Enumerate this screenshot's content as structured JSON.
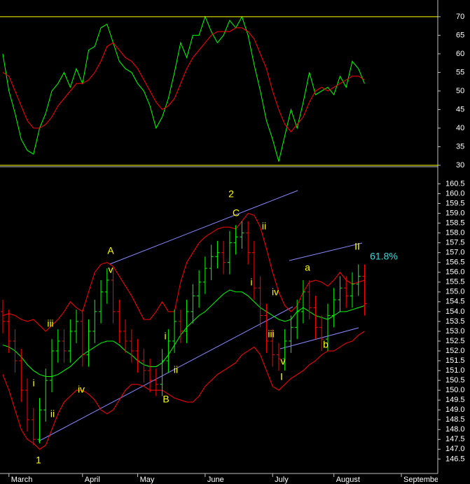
{
  "chart_data": [
    {
      "type": "line",
      "series": [
        {
          "color": "#00ff00",
          "values": [
            60,
            50,
            44,
            37,
            34,
            33,
            40,
            44,
            50,
            52,
            55,
            51,
            56,
            52,
            61,
            62,
            67,
            68,
            63,
            58,
            56,
            55,
            52,
            50,
            46,
            40,
            43,
            48,
            55,
            63,
            59,
            65,
            65,
            70,
            66,
            63,
            65,
            69,
            67,
            70,
            65,
            57,
            50,
            42,
            37,
            31,
            38,
            45,
            40,
            47,
            55,
            49,
            50,
            51,
            49,
            54,
            51,
            58,
            56,
            52
          ]
        },
        {
          "color": "#ff0000",
          "values": [
            55,
            54,
            50,
            46,
            42,
            40,
            40,
            41,
            43,
            46,
            48,
            50,
            52,
            52,
            53,
            55,
            58,
            62,
            63,
            61,
            59,
            58,
            56,
            53,
            50,
            47,
            45,
            46,
            48,
            52,
            56,
            59,
            61,
            63,
            65,
            66,
            66,
            66,
            67,
            67,
            66,
            64,
            60,
            56,
            50,
            45,
            41,
            39,
            41,
            43,
            47,
            50,
            51,
            50,
            51,
            52,
            53,
            54,
            54,
            53
          ]
        }
      ],
      "ylim": [
        29.8,
        74.5
      ],
      "yticks": [
        30,
        35,
        40,
        45,
        50,
        55,
        60,
        65,
        70
      ],
      "hlines": [
        30,
        70
      ],
      "hline_color": "#ffff00"
    },
    {
      "type": "ohlc",
      "categories": [
        null,
        "March",
        null,
        null,
        null,
        null,
        null,
        null,
        null,
        null,
        null,
        null,
        null,
        "April",
        null,
        null,
        null,
        null,
        null,
        null,
        null,
        null,
        "May",
        null,
        null,
        null,
        null,
        null,
        null,
        null,
        null,
        null,
        null,
        "June",
        null,
        null,
        null,
        null,
        null,
        null,
        null,
        null,
        null,
        null,
        "July",
        null,
        null,
        null,
        null,
        null,
        null,
        null,
        null,
        null,
        "August",
        null,
        null,
        null,
        null,
        null,
        null,
        null,
        null,
        null,
        null,
        "September"
      ],
      "open": [
        154.0,
        153.5,
        152.5,
        151.5,
        150.0,
        148.5,
        147.5,
        149.0,
        150.5,
        152.0,
        152.5,
        152.0,
        153.0,
        153.5,
        151.8,
        153.0,
        154.0,
        155.0,
        155.6,
        154.0,
        153.0,
        152.5,
        152.0,
        151.5,
        151.0,
        150.5,
        150.3,
        151.5,
        152.5,
        153.5,
        153.0,
        154.0,
        154.8,
        155.5,
        156.2,
        156.8,
        157.0,
        156.5,
        157.5,
        157.8,
        158.0,
        157.0,
        155.2,
        153.8,
        152.5,
        151.8,
        151.6,
        152.5,
        153.2,
        154.0,
        155.0,
        154.2,
        153.2,
        152.6,
        153.8,
        154.6,
        155.2,
        154.8,
        155.4,
        155.8,
        null,
        null,
        null,
        null,
        null,
        null
      ],
      "high": [
        154.6,
        154.1,
        153.1,
        152.1,
        150.6,
        149.1,
        149.6,
        151.1,
        152.6,
        153.1,
        153.1,
        153.6,
        154.1,
        154.1,
        153.6,
        154.6,
        155.6,
        156.2,
        156.2,
        154.6,
        153.6,
        153.1,
        152.6,
        152.1,
        151.6,
        151.1,
        152.1,
        153.1,
        154.1,
        154.1,
        154.6,
        155.4,
        156.1,
        156.8,
        157.4,
        157.6,
        157.6,
        158.1,
        158.4,
        158.6,
        158.6,
        157.6,
        155.8,
        154.4,
        153.1,
        152.4,
        153.1,
        153.8,
        154.6,
        155.6,
        155.6,
        154.8,
        153.8,
        154.4,
        155.2,
        155.8,
        155.8,
        156.0,
        156.4,
        156.4,
        null,
        null,
        null,
        null,
        null,
        null
      ],
      "low": [
        152.9,
        151.9,
        150.9,
        149.4,
        147.9,
        147.2,
        147.3,
        148.4,
        149.9,
        151.4,
        151.4,
        151.4,
        152.4,
        151.2,
        151.2,
        152.4,
        153.4,
        154.4,
        153.4,
        152.4,
        151.9,
        151.4,
        150.9,
        150.4,
        149.9,
        149.7,
        149.7,
        150.9,
        151.9,
        152.4,
        152.4,
        153.4,
        154.2,
        154.9,
        155.6,
        156.2,
        155.9,
        155.9,
        156.9,
        157.2,
        156.4,
        154.6,
        153.2,
        151.9,
        151.2,
        151.0,
        151.0,
        151.9,
        152.6,
        153.4,
        153.6,
        152.6,
        152.0,
        152.0,
        153.2,
        154.0,
        154.2,
        154.2,
        154.8,
        153.8,
        null,
        null,
        null,
        null,
        null,
        null
      ],
      "close": [
        153.5,
        152.5,
        151.5,
        150.0,
        148.5,
        147.5,
        149.0,
        150.5,
        152.0,
        152.5,
        152.0,
        153.0,
        153.5,
        151.8,
        153.0,
        154.0,
        155.0,
        155.6,
        154.0,
        153.0,
        152.5,
        152.0,
        151.5,
        151.0,
        150.5,
        150.3,
        151.5,
        152.5,
        153.5,
        153.0,
        154.0,
        154.8,
        155.5,
        156.2,
        156.8,
        157.0,
        156.5,
        157.5,
        157.8,
        158.0,
        157.0,
        155.2,
        153.8,
        152.5,
        151.8,
        151.6,
        152.5,
        153.2,
        154.0,
        155.0,
        154.2,
        153.2,
        152.6,
        153.8,
        154.6,
        155.2,
        154.8,
        155.4,
        155.8,
        154.4,
        null,
        null,
        null,
        null,
        null,
        null
      ],
      "up_color": "#00ff00",
      "down_color": "#ff0000",
      "bands": [
        {
          "color": "#00ff00",
          "values": [
            152.3,
            152.2,
            152.0,
            151.7,
            151.3,
            151.0,
            150.8,
            150.7,
            150.7,
            150.8,
            151.0,
            151.2,
            151.5,
            151.8,
            152.0,
            152.2,
            152.4,
            152.5,
            152.5,
            152.3,
            152.0,
            151.8,
            151.5,
            151.3,
            151.2,
            151.2,
            151.4,
            151.8,
            152.3,
            152.8,
            153.2,
            153.5,
            153.8,
            154.0,
            154.3,
            154.6,
            154.9,
            155.1,
            155.0,
            155.0,
            154.8,
            154.5,
            154.2,
            154.0,
            153.8,
            153.6,
            153.5,
            153.6,
            154.0,
            154.2,
            154.0,
            153.8,
            153.7,
            153.6,
            153.8,
            154.0,
            154.0,
            154.1,
            154.2,
            154.3,
            null,
            null,
            null,
            null,
            null,
            null
          ]
        },
        {
          "color": "#ff0000",
          "values": [
            153.8,
            153.9,
            153.8,
            153.6,
            153.5,
            153.6,
            153.3,
            153.0,
            153.3,
            153.6,
            154.0,
            154.5,
            154.2,
            154.0,
            155.0,
            156.0,
            156.4,
            156.5,
            156.3,
            155.8,
            155.3,
            154.8,
            154.2,
            153.6,
            153.6,
            154.0,
            154.5,
            154.0,
            154.0,
            155.5,
            156.5,
            157.0,
            157.5,
            157.8,
            158.0,
            158.2,
            158.3,
            158.3,
            158.2,
            158.6,
            159.0,
            158.9,
            158.3,
            157.2,
            156.0,
            155.0,
            154.3,
            154.0,
            154.3,
            155.0,
            155.5,
            155.6,
            155.5,
            155.3,
            155.6,
            156.0,
            155.6,
            155.4,
            155.5,
            155.6,
            null,
            null,
            null,
            null,
            null,
            null
          ]
        },
        {
          "color": "#ff0000",
          "values": [
            150.8,
            150.0,
            149.0,
            148.0,
            147.5,
            147.3,
            147.0,
            147.2,
            148.0,
            148.8,
            149.4,
            149.7,
            150.0,
            150.0,
            149.8,
            149.5,
            149.0,
            148.8,
            149.0,
            149.5,
            150.0,
            150.3,
            150.3,
            150.2,
            150.0,
            150.0,
            150.0,
            149.8,
            149.6,
            149.5,
            149.4,
            149.4,
            149.7,
            150.2,
            150.5,
            150.8,
            151.0,
            151.2,
            151.4,
            151.8,
            152.0,
            152.2,
            151.8,
            151.0,
            150.2,
            150.0,
            150.3,
            150.6,
            150.8,
            151.0,
            151.3,
            151.5,
            151.8,
            152.0,
            152.0,
            152.2,
            152.4,
            152.5,
            152.8,
            153.0,
            null,
            null,
            null,
            null,
            null,
            null
          ]
        }
      ],
      "ylim": [
        145.8,
        161.3
      ],
      "yticks": [
        146.5,
        {
          "value": 147,
          "label": "147.0"
        },
        147.5,
        {
          "value": 148,
          "label": "148.0"
        },
        148.5,
        {
          "value": 149,
          "label": "149.0"
        },
        149.5,
        {
          "value": 150,
          "label": "150.0"
        },
        150.5,
        {
          "value": 151,
          "label": "151.0"
        },
        151.5,
        {
          "value": 152,
          "label": "152.0"
        },
        152.5,
        {
          "value": 153,
          "label": "153.0"
        },
        153.5,
        {
          "value": 154,
          "label": "154.0"
        },
        154.5,
        {
          "value": 155,
          "label": "155.0"
        },
        155.5,
        {
          "value": 156,
          "label": "156.0"
        },
        156.5,
        {
          "value": 157,
          "label": "157.0"
        },
        157.5,
        {
          "value": 158,
          "label": "158.0"
        },
        158.5,
        {
          "value": 159,
          "label": "159.0"
        },
        159.5,
        {
          "value": 160,
          "label": "160.0"
        },
        160.5
      ],
      "annotations": [
        {
          "text": "1",
          "color": "#ffff00"
        },
        {
          "text": "ii",
          "color": "#ffff00"
        },
        {
          "text": "i",
          "color": "#ffff00"
        },
        {
          "text": "iii",
          "color": "#ffff00"
        },
        {
          "text": "iv",
          "color": "#ffff00"
        },
        {
          "text": "A",
          "color": "#ffff00"
        },
        {
          "text": "v",
          "color": "#ffff00"
        },
        {
          "text": "i",
          "color": "#ffff00"
        },
        {
          "text": "ii",
          "color": "#ffff00"
        },
        {
          "text": "B",
          "color": "#ffff00"
        },
        {
          "text": "2",
          "color": "#ffff00"
        },
        {
          "text": "C",
          "color": "#ffff00"
        },
        {
          "text": "ii",
          "color": "#ffff00"
        },
        {
          "text": "i",
          "color": "#ffff00"
        },
        {
          "text": "iv",
          "color": "#ffff00"
        },
        {
          "text": "iii",
          "color": "#ffff00"
        },
        {
          "text": "v",
          "color": "#ffff00"
        },
        {
          "text": "I",
          "color": "#ffff00"
        },
        {
          "text": "a",
          "color": "#ffff00"
        },
        {
          "text": "b",
          "color": "#ffff00"
        },
        {
          "text": "II",
          "color": "#ffff00"
        },
        {
          "text": "61.8%",
          "color": "#33dddd"
        }
      ]
    }
  ]
}
